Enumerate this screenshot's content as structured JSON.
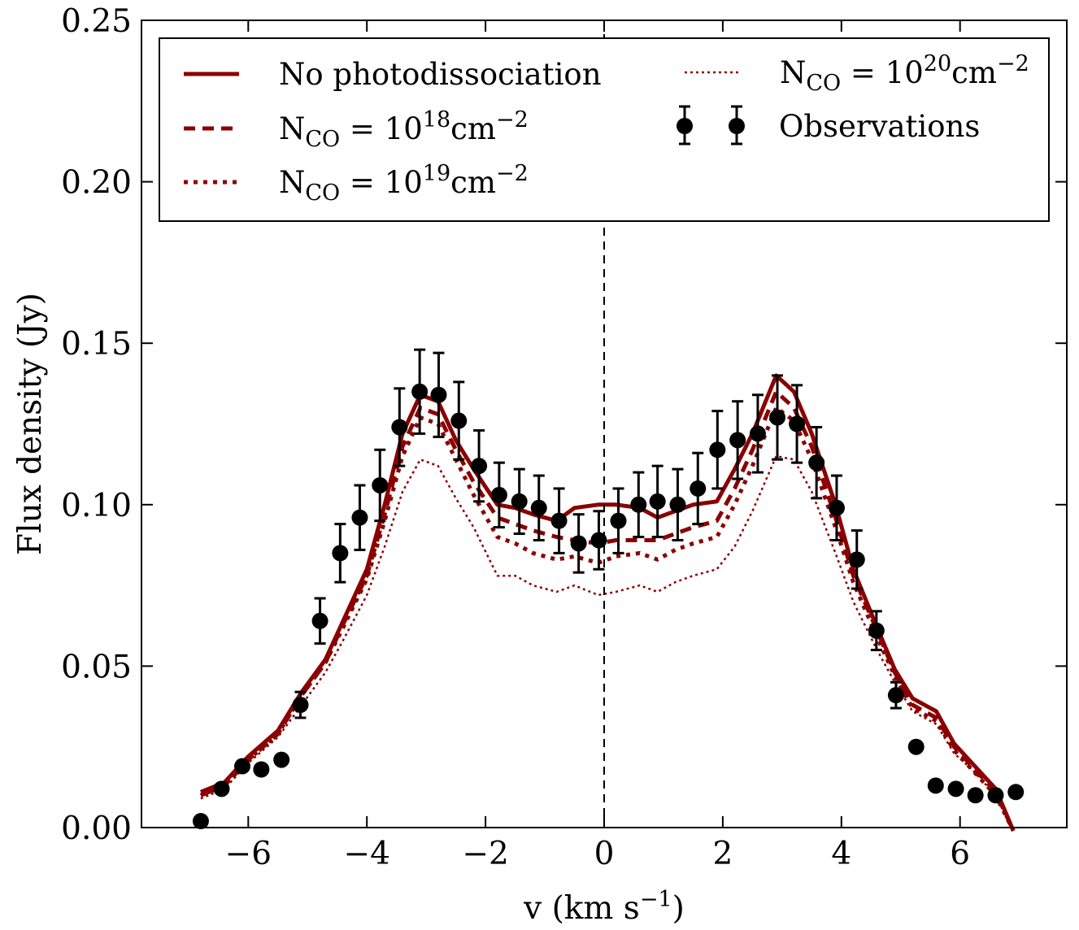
{
  "chart_data": {
    "type": "line",
    "title": "",
    "xlabel_parts": [
      "v (km s",
      "−1",
      ")"
    ],
    "ylabel": "Flux density (Jy)",
    "xlim": [
      -7.8,
      7.8
    ],
    "ylim": [
      0,
      0.25
    ],
    "x_ticks": [
      -6,
      -4,
      -2,
      0,
      2,
      4,
      6
    ],
    "x_tick_labels": [
      "−6",
      "−4",
      "−2",
      "0",
      "2",
      "4",
      "6"
    ],
    "y_ticks": [
      0,
      0.05,
      0.1,
      0.15,
      0.2,
      0.25
    ],
    "y_tick_labels": [
      "0.00",
      "0.05",
      "0.10",
      "0.15",
      "0.20",
      "0.25"
    ],
    "grid": false,
    "legend_position": "top",
    "vline_x": 0,
    "colors": {
      "model": "#8b0000",
      "observations": "#000000"
    },
    "series": [
      {
        "name": "No photodissociation",
        "legend_parts": [
          "No photodissociation"
        ],
        "style": "solid",
        "x": [
          -6.8,
          -6.4,
          -6.0,
          -5.5,
          -5.1,
          -4.7,
          -4.4,
          -4.0,
          -3.7,
          -3.4,
          -3.1,
          -2.8,
          -2.5,
          -2.2,
          -1.8,
          -1.5,
          -1.2,
          -0.8,
          -0.5,
          -0.1,
          0.2,
          0.6,
          0.9,
          1.2,
          1.5,
          1.9,
          2.2,
          2.5,
          2.9,
          3.2,
          3.5,
          3.9,
          4.2,
          4.6,
          4.9,
          5.2,
          5.6,
          5.9,
          6.2,
          6.6,
          6.9
        ],
        "y": [
          0.011,
          0.014,
          0.022,
          0.03,
          0.042,
          0.052,
          0.064,
          0.08,
          0.1,
          0.122,
          0.134,
          0.132,
          0.12,
          0.111,
          0.1,
          0.099,
          0.097,
          0.095,
          0.099,
          0.1,
          0.1,
          0.099,
          0.096,
          0.098,
          0.1,
          0.101,
          0.111,
          0.122,
          0.14,
          0.135,
          0.122,
          0.1,
          0.08,
          0.062,
          0.049,
          0.04,
          0.036,
          0.026,
          0.02,
          0.012,
          -0.001
        ]
      },
      {
        "name": "N_CO = 10^18 cm^-2",
        "legend_parts": [
          "N",
          "CO",
          " = 10",
          "18",
          "cm",
          "−2"
        ],
        "style": "dashed",
        "x": [
          -6.8,
          -6.4,
          -6.0,
          -5.5,
          -5.1,
          -4.7,
          -4.4,
          -4.0,
          -3.7,
          -3.4,
          -3.1,
          -2.8,
          -2.5,
          -2.2,
          -1.8,
          -1.5,
          -1.2,
          -0.8,
          -0.5,
          -0.1,
          0.2,
          0.6,
          0.9,
          1.2,
          1.5,
          1.9,
          2.2,
          2.5,
          2.9,
          3.2,
          3.5,
          3.9,
          4.2,
          4.6,
          4.9,
          5.2,
          5.6,
          5.9,
          6.2,
          6.6,
          6.9
        ],
        "y": [
          0.01,
          0.013,
          0.021,
          0.029,
          0.041,
          0.051,
          0.063,
          0.078,
          0.097,
          0.118,
          0.13,
          0.128,
          0.117,
          0.107,
          0.096,
          0.094,
          0.092,
          0.09,
          0.089,
          0.088,
          0.089,
          0.089,
          0.089,
          0.091,
          0.093,
          0.095,
          0.105,
          0.117,
          0.135,
          0.13,
          0.118,
          0.096,
          0.078,
          0.061,
          0.048,
          0.038,
          0.034,
          0.025,
          0.019,
          0.011,
          -0.001
        ]
      },
      {
        "name": "N_CO = 10^19 cm^-2",
        "legend_parts": [
          "N",
          "CO",
          " = 10",
          "19",
          "cm",
          "−2"
        ],
        "style": "dotted",
        "x": [
          -6.8,
          -6.4,
          -6.0,
          -5.5,
          -5.1,
          -4.7,
          -4.4,
          -4.0,
          -3.7,
          -3.4,
          -3.1,
          -2.8,
          -2.5,
          -2.2,
          -1.8,
          -1.5,
          -1.2,
          -0.8,
          -0.5,
          -0.1,
          0.2,
          0.6,
          0.9,
          1.2,
          1.5,
          1.9,
          2.2,
          2.5,
          2.9,
          3.2,
          3.5,
          3.9,
          4.2,
          4.6,
          4.9,
          5.2,
          5.6,
          5.9,
          6.2,
          6.6,
          6.9
        ],
        "y": [
          0.01,
          0.013,
          0.021,
          0.029,
          0.041,
          0.051,
          0.062,
          0.077,
          0.095,
          0.115,
          0.127,
          0.125,
          0.114,
          0.103,
          0.09,
          0.088,
          0.085,
          0.083,
          0.084,
          0.082,
          0.084,
          0.085,
          0.083,
          0.086,
          0.088,
          0.09,
          0.1,
          0.112,
          0.13,
          0.126,
          0.114,
          0.093,
          0.076,
          0.059,
          0.047,
          0.037,
          0.033,
          0.024,
          0.018,
          0.01,
          -0.001
        ]
      },
      {
        "name": "N_CO = 10^20 cm^-2",
        "legend_parts": [
          "N",
          "CO",
          " = 10",
          "20",
          "cm",
          "−2"
        ],
        "style": "fine-dotted",
        "x": [
          -6.8,
          -6.4,
          -6.0,
          -5.5,
          -5.1,
          -4.7,
          -4.4,
          -4.0,
          -3.7,
          -3.4,
          -3.1,
          -2.8,
          -2.5,
          -2.2,
          -1.8,
          -1.5,
          -1.2,
          -0.8,
          -0.5,
          -0.1,
          0.2,
          0.6,
          0.9,
          1.2,
          1.5,
          1.9,
          2.2,
          2.5,
          2.9,
          3.2,
          3.5,
          3.9,
          4.2,
          4.6,
          4.9,
          5.2,
          5.6,
          5.9,
          6.2,
          6.6,
          6.9
        ],
        "y": [
          0.009,
          0.012,
          0.02,
          0.028,
          0.038,
          0.048,
          0.058,
          0.072,
          0.087,
          0.104,
          0.114,
          0.112,
          0.102,
          0.093,
          0.078,
          0.078,
          0.075,
          0.073,
          0.075,
          0.072,
          0.073,
          0.075,
          0.073,
          0.076,
          0.078,
          0.08,
          0.087,
          0.098,
          0.115,
          0.114,
          0.104,
          0.085,
          0.07,
          0.055,
          0.045,
          0.036,
          0.032,
          0.023,
          0.018,
          0.01,
          -0.001
        ]
      }
    ],
    "observations": {
      "name": "Observations",
      "legend_parts": [
        "Observations"
      ],
      "x": [
        -6.8,
        -6.45,
        -6.1,
        -5.78,
        -5.44,
        -5.12,
        -4.79,
        -4.45,
        -4.12,
        -3.78,
        -3.45,
        -3.11,
        -2.79,
        -2.45,
        -2.11,
        -1.77,
        -1.43,
        -1.1,
        -0.76,
        -0.43,
        -0.09,
        0.24,
        0.58,
        0.9,
        1.24,
        1.58,
        1.91,
        2.25,
        2.59,
        2.92,
        3.25,
        3.58,
        3.92,
        4.26,
        4.59,
        4.92,
        5.26,
        5.59,
        5.93,
        6.26,
        6.6,
        6.94
      ],
      "y": [
        0.002,
        0.012,
        0.019,
        0.018,
        0.021,
        0.038,
        0.064,
        0.085,
        0.096,
        0.106,
        0.124,
        0.135,
        0.134,
        0.126,
        0.112,
        0.103,
        0.101,
        0.099,
        0.095,
        0.088,
        0.089,
        0.095,
        0.1,
        0.101,
        0.1,
        0.105,
        0.117,
        0.12,
        0.122,
        0.127,
        0.125,
        0.113,
        0.099,
        0.083,
        0.061,
        0.041,
        0.025,
        0.013,
        0.012,
        0.01,
        0.01,
        0.011
      ],
      "yerr": [
        0.0,
        0.0,
        0.0,
        0.0,
        0.0,
        0.004,
        0.007,
        0.009,
        0.01,
        0.011,
        0.012,
        0.013,
        0.013,
        0.012,
        0.011,
        0.01,
        0.01,
        0.01,
        0.01,
        0.009,
        0.009,
        0.01,
        0.01,
        0.011,
        0.011,
        0.011,
        0.012,
        0.012,
        0.012,
        0.013,
        0.012,
        0.011,
        0.01,
        0.009,
        0.006,
        0.004,
        0.0,
        0.0,
        0.0,
        0.0,
        0.0,
        0.0
      ]
    }
  }
}
